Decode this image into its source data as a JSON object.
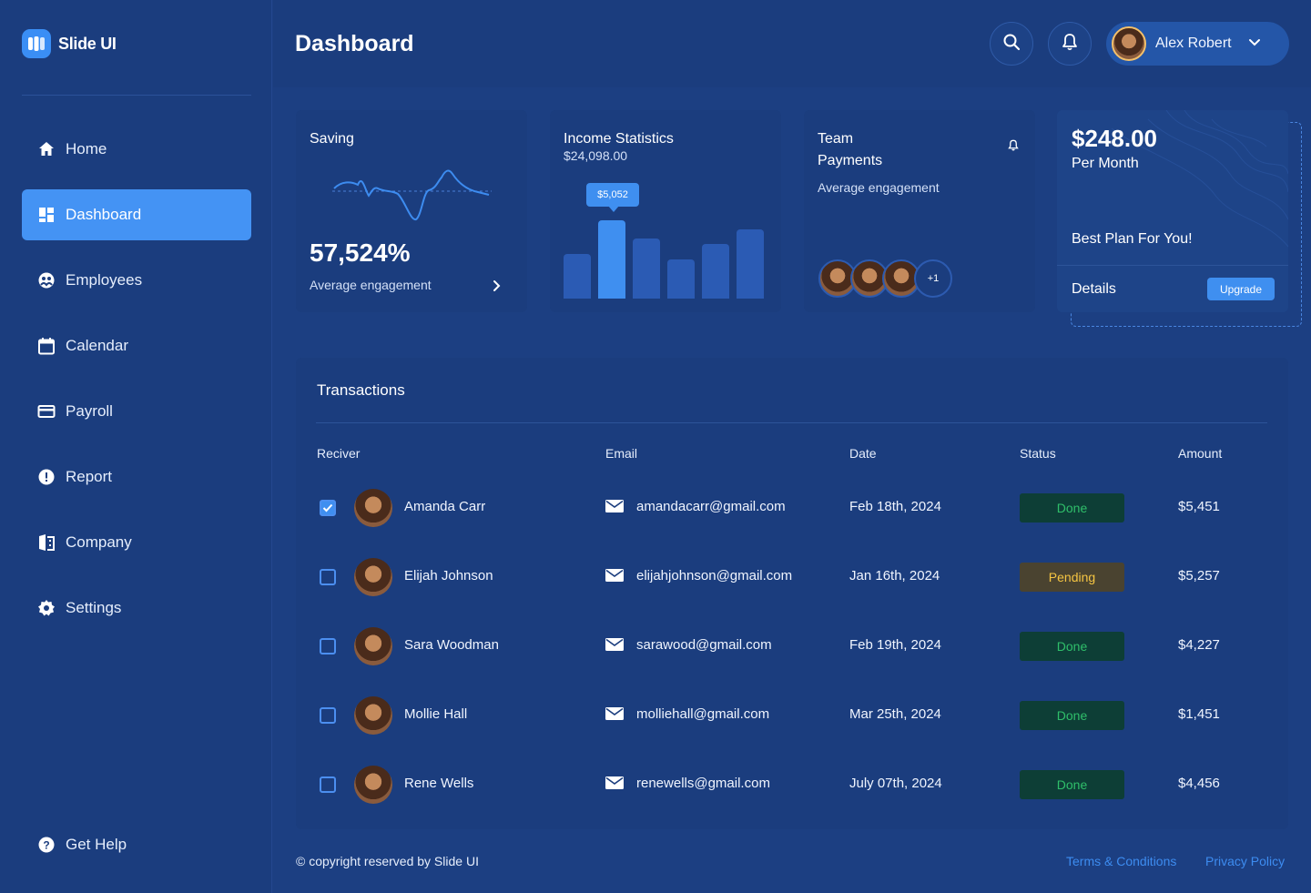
{
  "brand": {
    "name": "Slide UI"
  },
  "nav": {
    "items": [
      {
        "label": "Home",
        "icon": "home-icon"
      },
      {
        "label": "Dashboard",
        "icon": "dashboard-icon",
        "active": true
      },
      {
        "label": "Employees",
        "icon": "employees-icon"
      },
      {
        "label": "Calendar",
        "icon": "calendar-icon"
      },
      {
        "label": "Payroll",
        "icon": "payroll-icon"
      },
      {
        "label": "Report",
        "icon": "report-icon"
      },
      {
        "label": "Company",
        "icon": "company-icon"
      },
      {
        "label": "Settings",
        "icon": "settings-icon"
      }
    ],
    "help": "Get Help"
  },
  "header": {
    "title": "Dashboard",
    "user_name": "Alex Robert"
  },
  "cards": {
    "saving": {
      "title": "Saving",
      "value": "57,524%",
      "caption": "Average engagement"
    },
    "income": {
      "title": "Income Statistics",
      "amount": "$24,098.00",
      "tooltip": "$5,052",
      "bars": [
        {
          "value": 0.48
        },
        {
          "value": 0.85,
          "highlight": true
        },
        {
          "value": 0.65
        },
        {
          "value": 0.42
        },
        {
          "value": 0.59
        },
        {
          "value": 0.75
        }
      ]
    },
    "team": {
      "title_line1": "Team",
      "title_line2": "Payments",
      "caption": "Average engagement",
      "more": "+1"
    },
    "plan": {
      "price": "$248.00",
      "period": "Per Month",
      "tagline": "Best Plan For You!",
      "details": "Details",
      "button": "Upgrade"
    }
  },
  "transactions": {
    "title": "Transactions",
    "columns": {
      "receiver": "Reciver",
      "email": "Email",
      "date": "Date",
      "status": "Status",
      "amount": "Amount"
    },
    "rows": [
      {
        "name": "Amanda Carr",
        "email": "amandacarr@gmail.com",
        "date": "Feb 18th, 2024",
        "status": "Done",
        "amount": "$5,451",
        "checked": true
      },
      {
        "name": "Elijah Johnson",
        "email": "elijahjohnson@gmail.com",
        "date": "Jan 16th, 2024",
        "status": "Pending",
        "amount": "$5,257",
        "checked": false
      },
      {
        "name": "Sara Woodman",
        "email": "sarawood@gmail.com",
        "date": "Feb 19th, 2024",
        "status": "Done",
        "amount": "$4,227",
        "checked": false
      },
      {
        "name": "Mollie Hall",
        "email": "molliehall@gmail.com",
        "date": "Mar 25th, 2024",
        "status": "Done",
        "amount": "$1,451",
        "checked": false
      },
      {
        "name": "Rene Wells",
        "email": "renewells@gmail.com",
        "date": "July 07th, 2024",
        "status": "Done",
        "amount": "$4,456",
        "checked": false
      }
    ]
  },
  "footer": {
    "copyright": "© copyright reserved by Slide UI",
    "terms": "Terms & Conditions",
    "privacy": "Privacy Policy"
  },
  "colors": {
    "accent": "#4493f4",
    "done": "#2fbf6a",
    "pending": "#f5c542"
  }
}
